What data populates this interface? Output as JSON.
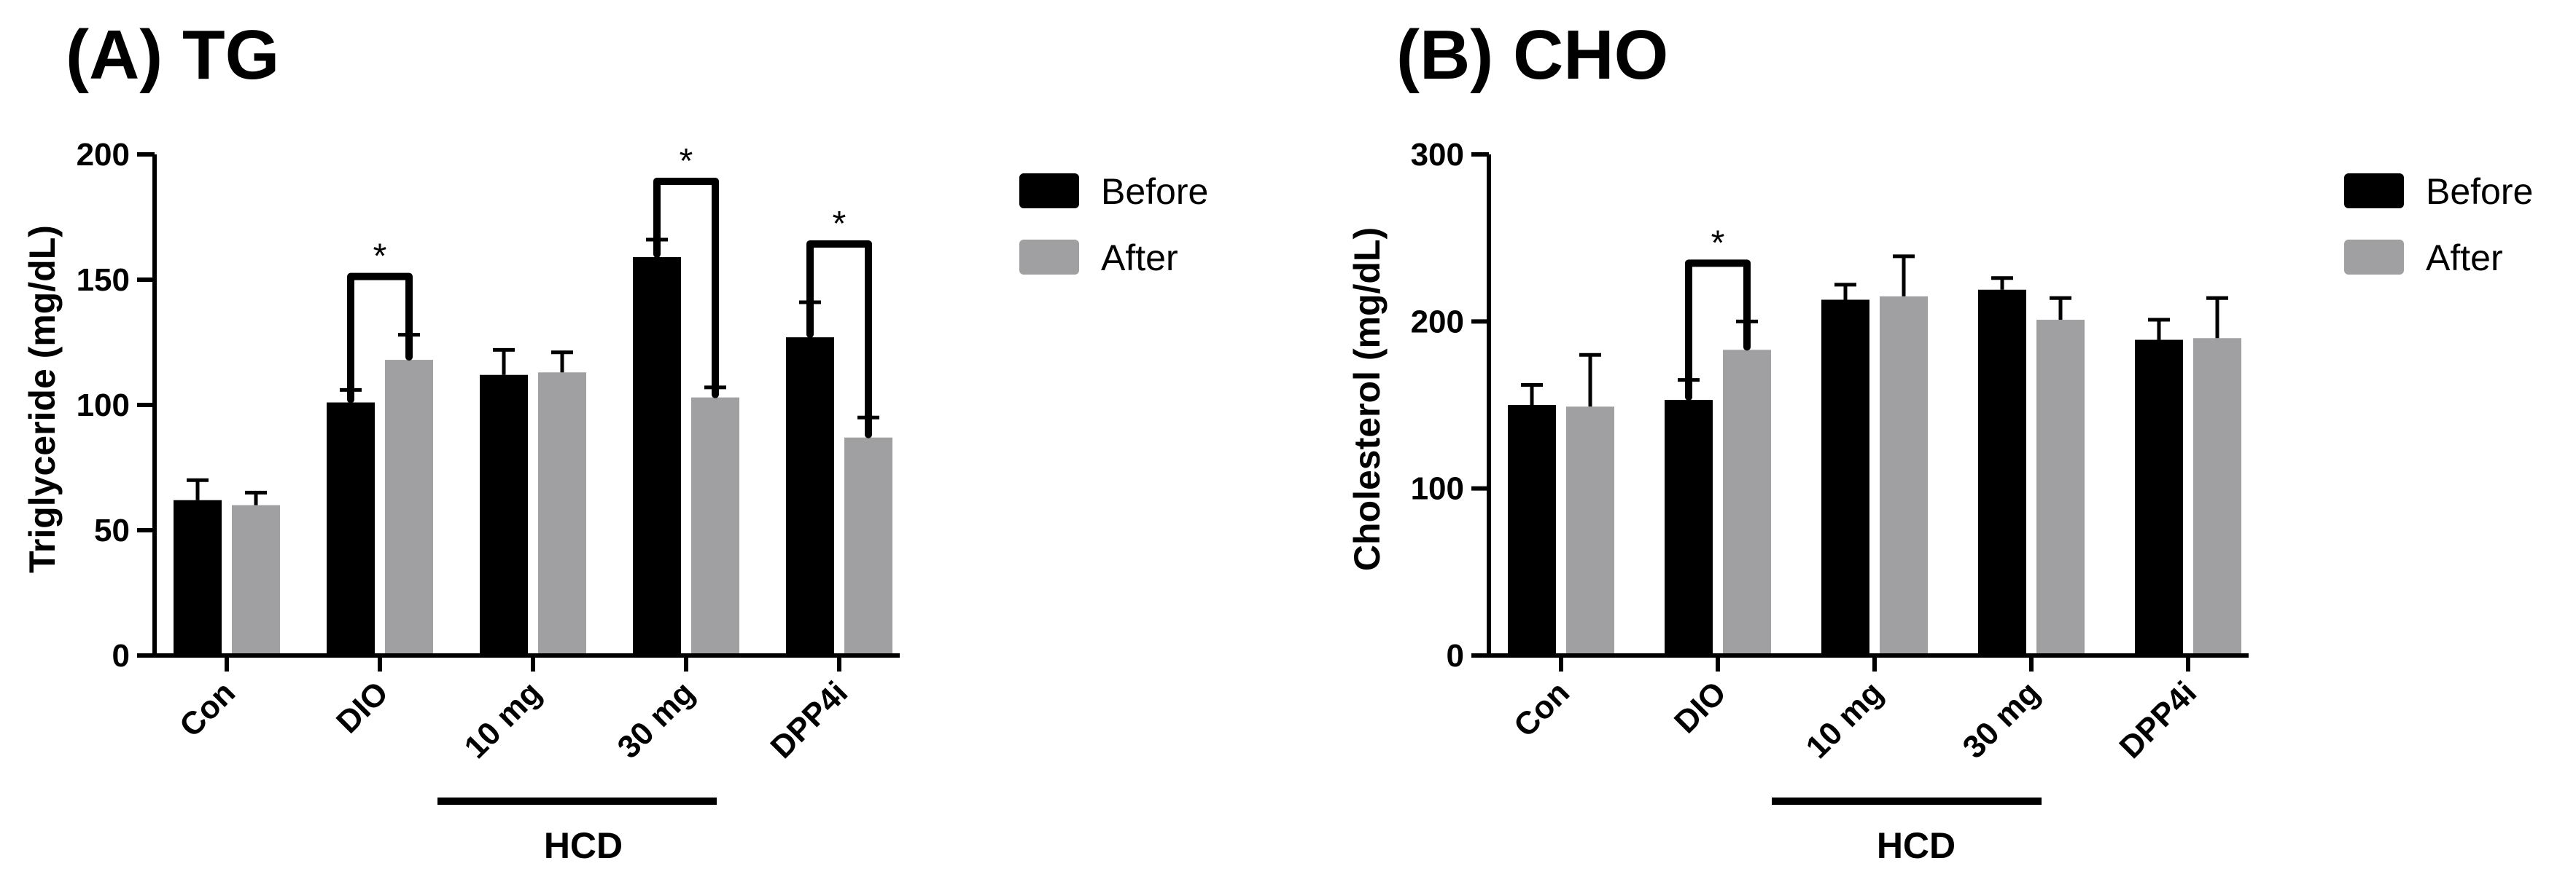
{
  "colors": {
    "before": "#000000",
    "after": "#a0a0a3"
  },
  "chart_data": [
    {
      "type": "bar",
      "title": "(A) TG",
      "ylabel": "Triglyceride (mg/dL)",
      "xlabel": "",
      "ylim": [
        0,
        200
      ],
      "yticks": [
        "0",
        "50",
        "100",
        "150",
        "200"
      ],
      "yticks_values": [
        0,
        50,
        100,
        150,
        200
      ],
      "categories": [
        "Con",
        "DIO",
        "10 mg",
        "30 mg",
        "DPP4i"
      ],
      "series": [
        {
          "name": "Before",
          "values": [
            62,
            101,
            112,
            159,
            127
          ],
          "errors": [
            8,
            5,
            10,
            7,
            14
          ]
        },
        {
          "name": "After",
          "values": [
            60,
            118,
            113,
            103,
            87
          ],
          "errors": [
            5,
            10,
            8,
            4,
            8
          ]
        }
      ],
      "legend": [
        "Before",
        "After"
      ],
      "legend_position": "top-right",
      "group_label": "HCD",
      "group_span": [
        2,
        3
      ],
      "significance": [
        {
          "category": 1,
          "label": "*"
        },
        {
          "category": 3,
          "label": "*"
        },
        {
          "category": 4,
          "label": "*"
        }
      ]
    },
    {
      "type": "bar",
      "title": "(B) CHO",
      "ylabel": "Cholesterol (mg/dL)",
      "xlabel": "",
      "ylim": [
        0,
        300
      ],
      "yticks": [
        "0",
        "100",
        "200",
        "300"
      ],
      "yticks_values": [
        0,
        100,
        200,
        300
      ],
      "categories": [
        "Con",
        "DIO",
        "10 mg",
        "30 mg",
        "DPP4i"
      ],
      "series": [
        {
          "name": "Before",
          "values": [
            150,
            153,
            213,
            219,
            189
          ],
          "errors": [
            12,
            12,
            9,
            7,
            12
          ]
        },
        {
          "name": "After",
          "values": [
            149,
            183,
            215,
            201,
            190
          ],
          "errors": [
            31,
            17,
            24,
            13,
            24
          ]
        }
      ],
      "legend": [
        "Before",
        "After"
      ],
      "legend_position": "top-right",
      "group_label": "HCD",
      "group_span": [
        2,
        3
      ],
      "significance": [
        {
          "category": 1,
          "label": "*"
        }
      ]
    }
  ]
}
